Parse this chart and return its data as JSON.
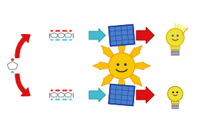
{
  "bg_color": "#ffffff",
  "figsize": [
    2.92,
    1.89
  ],
  "dpi": 100,
  "red": "#e83030",
  "cyan": "#55ccee",
  "solar_blue": "#4a80cc",
  "solar_dark": "#1a3a99",
  "solar_light": "#88aaee",
  "sun_yellow": "#f8c800",
  "sun_orange": "#f09000",
  "bolt_yellow": "#f8c000",
  "bolt_orange": "#e08000",
  "bulb_yellow": "#f0e030",
  "bulb_outline": "#c8b000",
  "gray_struct": "#888888",
  "gray_bond": "#666666",
  "arrow_red": "#dd1111",
  "arrow_cyan": "#44bbcc",
  "arrow_cyan_edge": "#229999"
}
